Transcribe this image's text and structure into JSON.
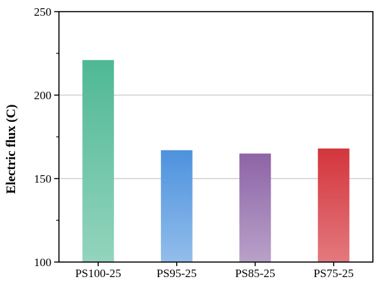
{
  "chart_data": {
    "type": "bar",
    "title": "",
    "xlabel": "",
    "ylabel": "Electric flux (C)",
    "categories": [
      "PS100-25",
      "PS95-25",
      "PS85-25",
      "PS75-25"
    ],
    "values": [
      221,
      167,
      165,
      168
    ],
    "ylim": [
      100,
      250
    ],
    "y_major_ticks": [
      100,
      150,
      200,
      250
    ],
    "y_minor_ticks": [
      125,
      175,
      225
    ],
    "grid": "horizontal at major ticks",
    "legend": "none",
    "bar_colors": [
      {
        "top": "#4fb895",
        "bottom": "#93d4bd"
      },
      {
        "top": "#4d92dd",
        "bottom": "#92bdeb"
      },
      {
        "top": "#8e64a6",
        "bottom": "#b8a1c9"
      },
      {
        "top": "#d3353c",
        "bottom": "#e3797d"
      }
    ]
  }
}
